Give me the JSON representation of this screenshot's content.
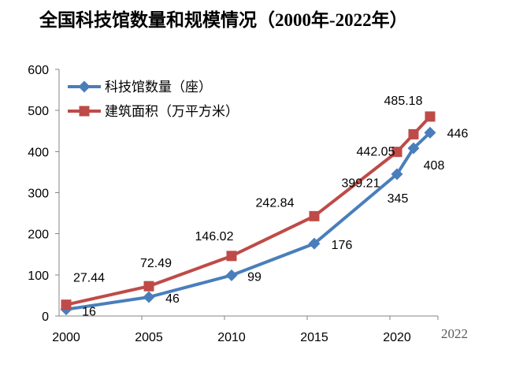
{
  "chart_data": {
    "type": "line",
    "title": "全国科技馆数量和规模情况（2000年-2022年）",
    "x": [
      2000,
      2005,
      2010,
      2015,
      2020,
      2021,
      2022
    ],
    "x_tick_labels": [
      "2000",
      "2005",
      "2010",
      "2015",
      "2020",
      "2022"
    ],
    "yticks": [
      0,
      100,
      200,
      300,
      400,
      500,
      600
    ],
    "ylim": [
      0,
      600
    ],
    "grid": false,
    "legend_position": "top-left",
    "series": [
      {
        "name": "科技馆数量（座）",
        "color": "#4A7EBB",
        "marker": "diamond",
        "values": [
          16,
          46,
          99,
          176,
          345,
          408,
          446
        ]
      },
      {
        "name": "建筑面积（万平方米）",
        "color": "#BE4B48",
        "marker": "square",
        "values": [
          27.44,
          72.49,
          146.02,
          242.84,
          399.21,
          442.05,
          485.18
        ]
      }
    ]
  }
}
